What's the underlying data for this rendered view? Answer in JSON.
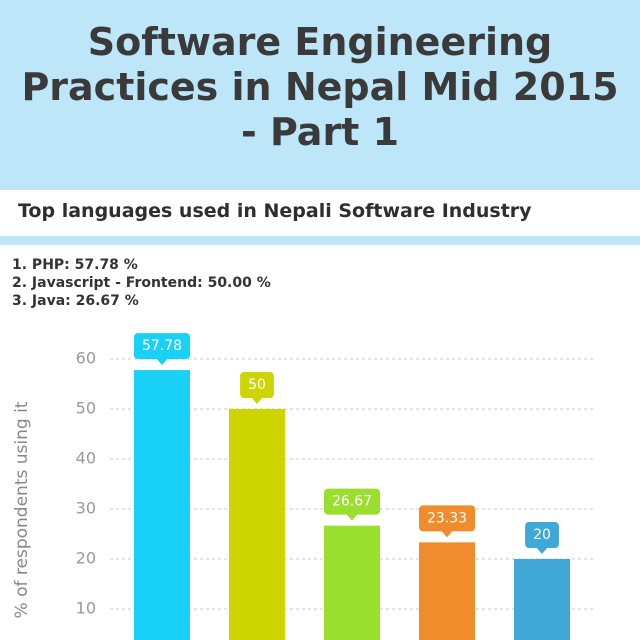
{
  "chart_data": {
    "type": "bar",
    "title": "Software Engineering Practices in Nepal Mid 2015 - Part 1",
    "subtitle": "Top languages used in Nepali Software Industry",
    "notes": [
      "1. PHP: 57.78 %",
      "2. Javascript - Frontend: 50.00 %",
      "3. Java: 26.67 %"
    ],
    "y_label": "% of respondents using it",
    "categories": [
      null,
      null,
      null,
      null,
      null
    ],
    "values": [
      57.78,
      50,
      26.67,
      23.33,
      20
    ],
    "colors": [
      "#19d0f6",
      "#cdd400",
      "#9ade2e",
      "#f08c2c",
      "#3fa8d6"
    ],
    "ylim": [
      0,
      60
    ],
    "yticks": [
      10,
      20,
      30,
      40,
      50,
      60
    ],
    "grid": true
  }
}
